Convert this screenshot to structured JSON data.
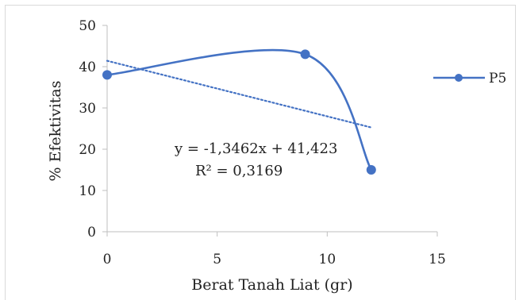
{
  "chart_data": {
    "type": "scatter",
    "xlabel": "Berat  Tanah  Liat (gr)",
    "ylabel": "% Efektivitas",
    "xlim": [
      0,
      15
    ],
    "ylim": [
      0,
      50
    ],
    "x_ticks": [
      0,
      5,
      10,
      15
    ],
    "y_ticks": [
      0,
      10,
      20,
      30,
      40,
      50
    ],
    "x_tick_labels": [
      "0",
      "5",
      "10",
      "15"
    ],
    "y_tick_labels": [
      "0",
      "10",
      "20",
      "30",
      "40",
      "50"
    ],
    "grid": false,
    "legend_position": "right",
    "series": [
      {
        "name": "P5",
        "x": [
          0,
          9,
          12
        ],
        "y": [
          38,
          43,
          15
        ],
        "style": "smooth-line-with-markers",
        "color": "#4472c4"
      }
    ],
    "trendline": {
      "type": "linear",
      "slope": -1.3462,
      "intercept": 41.423,
      "x_range": [
        0,
        12
      ],
      "style": "dotted",
      "color": "#4472c4",
      "equation_label": "y = -1,3462x + 41,423",
      "r2_label": "R² = 0,3169"
    }
  }
}
